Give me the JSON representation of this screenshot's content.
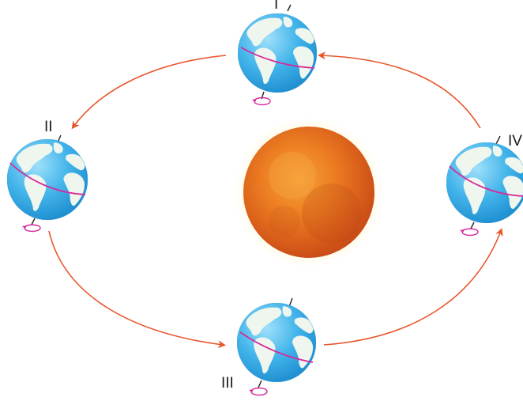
{
  "positions": [
    {
      "id": "I",
      "label": "I"
    },
    {
      "id": "II",
      "label": "II"
    },
    {
      "id": "III",
      "label": "III"
    },
    {
      "id": "IV",
      "label": "IV"
    }
  ],
  "colors": {
    "orbit_arrow": "#e8552a",
    "equator": "#d62a9c",
    "rotation_arrow": "#d62a9c",
    "ocean": "#3aaee6",
    "land": "#eaf4ea",
    "sun_core": "#e8731c",
    "sun_glow": "#fde27a"
  },
  "icons": {
    "sun": "sun-icon",
    "earth": "earth-globe-icon",
    "rotation": "rotation-arrow-icon"
  }
}
